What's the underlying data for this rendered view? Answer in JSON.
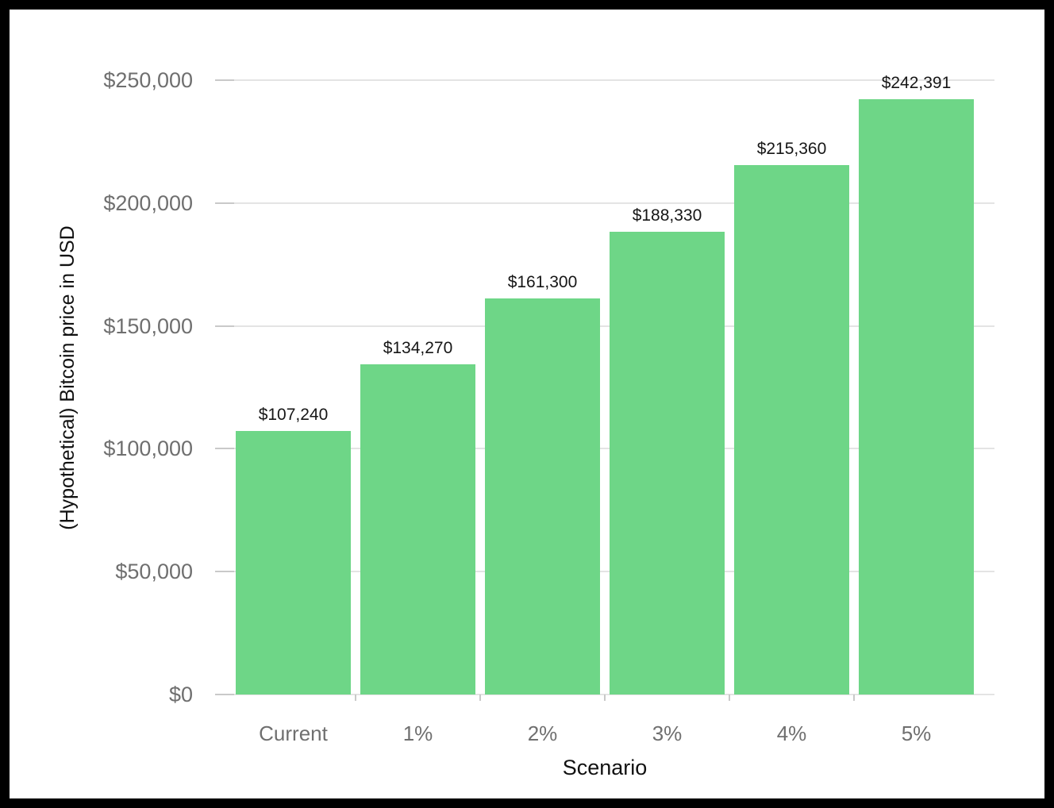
{
  "chart_data": {
    "type": "bar",
    "categories": [
      "Current",
      "1%",
      "2%",
      "3%",
      "4%",
      "5%"
    ],
    "values": [
      107240,
      134270,
      161300,
      188330,
      215360,
      242391
    ],
    "bar_labels": [
      "$107,240",
      "$134,270",
      "$161,300",
      "$188,330",
      "$215,360",
      "$242,391"
    ],
    "xlabel": "Scenario",
    "ylabel": "(Hypothetical) Bitcoin price in USD",
    "ylim": [
      0,
      250000
    ],
    "ytick_interval": 50000,
    "ytick_labels": [
      "$0",
      "$50,000",
      "$100,000",
      "$150,000",
      "$200,000",
      "$250,000"
    ],
    "grid": true,
    "legend": false,
    "bar_color": "#6ed687"
  },
  "colors": {
    "bar": "#6ed687",
    "grid_line": "#e4e4e4",
    "axis_tick": "#c9c9c9",
    "tick_label": "#6f6f6f",
    "data_label": "#161616",
    "axis_title": "#111111",
    "background": "#ffffff",
    "frame_border": "#000000"
  }
}
